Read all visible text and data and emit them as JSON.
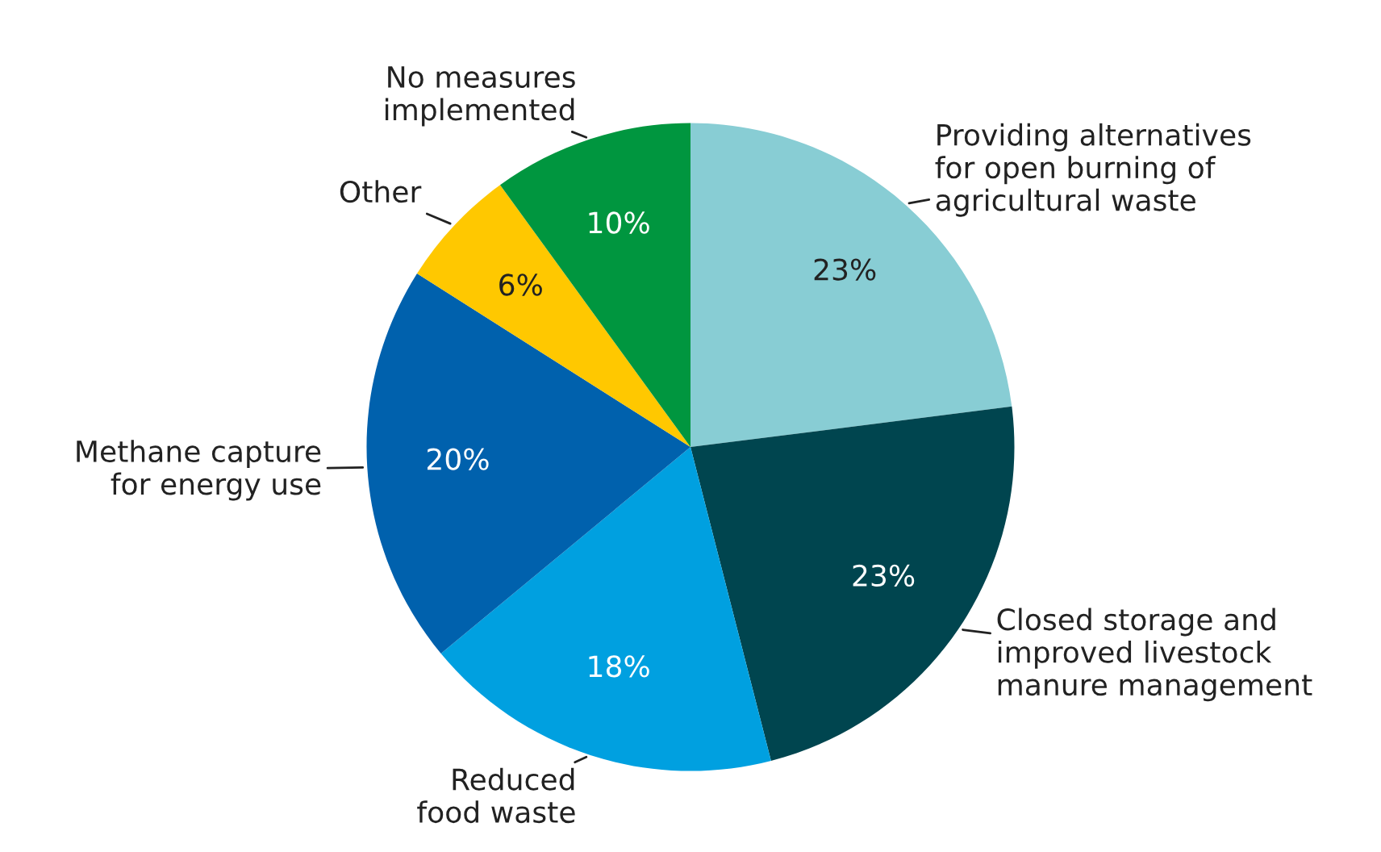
{
  "chart_data": {
    "type": "pie",
    "categories": [
      "Providing alternatives\nfor open burning of\nagricultural waste",
      "Closed storage and\nimproved livestock\nmanure management",
      "Reduced\nfood waste",
      "Methane capture\nfor energy use",
      "Other",
      "No measures\nimplemented"
    ],
    "values": [
      23,
      23,
      18,
      20,
      6,
      10
    ],
    "value_labels": [
      "23%",
      "23%",
      "18%",
      "20%",
      "6%",
      "10%"
    ],
    "colors": [
      "#88cdd4",
      "#00454f",
      "#00a0e0",
      "#0061ad",
      "#ffc800",
      "#00963f"
    ]
  }
}
